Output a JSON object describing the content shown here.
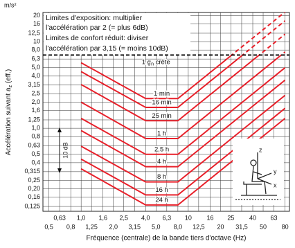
{
  "chart_data": {
    "type": "line",
    "y_unit": "m/s²",
    "y_label": {
      "text": "Accélération suivant a",
      "sub": "z",
      "tail": " (eff.)"
    },
    "x_label": "Fréquence (centrale) de la bande tiers d'octave (Hz)",
    "box_lines": [
      "Limites d'exposition: multiplier",
      "l'accélération par 2 (= plus 6dB)",
      "Limites de confort réduit: diviser",
      "l'accélération par 3,15 (= moins 10dB)"
    ],
    "threshold": {
      "value": 7,
      "label": "1 g",
      "sub": "n",
      "tail": " crête"
    },
    "db_note": "10 dB",
    "axes_letters": [
      "z",
      "y",
      "x"
    ],
    "log_x": true,
    "log_y": true,
    "grid": true,
    "color": "#e8202a",
    "xlim": [
      0.44,
      88
    ],
    "ylim": [
      0.11,
      21.7
    ],
    "xticks": [
      {
        "value": 0.5,
        "label": "0,5"
      },
      {
        "value": 0.63,
        "label": "0,63"
      },
      {
        "value": 0.8,
        "label": "0,8"
      },
      {
        "value": 1.0,
        "label": "1,0"
      },
      {
        "value": 1.25,
        "label": "1,25"
      },
      {
        "value": 1.6,
        "label": "1,6"
      },
      {
        "value": 2.0,
        "label": "2,0"
      },
      {
        "value": 2.5,
        "label": "2,5"
      },
      {
        "value": 3.15,
        "label": "3,15"
      },
      {
        "value": 4.0,
        "label": "4,0"
      },
      {
        "value": 5.0,
        "label": "5,0"
      },
      {
        "value": 6.3,
        "label": "6,3"
      },
      {
        "value": 8.0,
        "label": "8,0"
      },
      10,
      {
        "value": 12.5,
        "label": "12,5"
      },
      16,
      20,
      25,
      {
        "value": 31.5,
        "label": "31,5"
      },
      40,
      50,
      63,
      80
    ],
    "yticks": [
      {
        "value": 0.125,
        "label": "0,125"
      },
      {
        "value": 0.16,
        "label": "0,16"
      },
      {
        "value": 0.2,
        "label": "0,20"
      },
      {
        "value": 0.25,
        "label": "0,25"
      },
      {
        "value": 0.315,
        "label": "0,315"
      },
      {
        "value": 0.4,
        "label": "0,4"
      },
      {
        "value": 0.5,
        "label": "0,5"
      },
      {
        "value": 0.63,
        "label": "0,63"
      },
      {
        "value": 0.8,
        "label": "0,8"
      },
      {
        "value": 1.0,
        "label": "1,0"
      },
      {
        "value": 1.25,
        "label": "1,25"
      },
      {
        "value": 1.6,
        "label": "1,6"
      },
      {
        "value": 2.0,
        "label": "2,0"
      },
      {
        "value": 2.5,
        "label": "2,5"
      },
      {
        "value": 3.15,
        "label": "3,15"
      },
      {
        "value": 4.0,
        "label": "4,0"
      },
      {
        "value": 5.0,
        "label": "5,0"
      },
      {
        "value": 6.3,
        "label": "6,3"
      },
      {
        "value": 8.0,
        "label": "8,0"
      },
      10,
      {
        "value": 12.5,
        "label": "12,5"
      },
      16,
      20
    ],
    "x": [
      1,
      4,
      8,
      80
    ],
    "series": [
      {
        "name": "1 min",
        "values": [
          5.7,
          2.2,
          2.2,
          22
        ]
      },
      {
        "name": "16 min",
        "values": [
          4.5,
          1.74,
          1.74,
          17.4
        ]
      },
      {
        "name": "25 min",
        "values": [
          3.2,
          1.22,
          1.22,
          12.2
        ]
      },
      {
        "name": "1 h",
        "values": [
          2.0,
          0.76,
          0.76,
          7.6
        ]
      },
      {
        "name": "2,5 h",
        "values": [
          1.3,
          0.5,
          0.5,
          5.0
        ]
      },
      {
        "name": "4 h",
        "values": [
          0.94,
          0.36,
          0.36,
          3.6
        ]
      },
      {
        "name": "8 h",
        "values": [
          0.62,
          0.24,
          0.24,
          2.4
        ]
      },
      {
        "name": "16 h",
        "values": [
          0.44,
          0.17,
          0.17,
          1.7
        ]
      },
      {
        "name": "24 h",
        "values": [
          0.34,
          0.13,
          0.13,
          1.3
        ]
      }
    ]
  }
}
